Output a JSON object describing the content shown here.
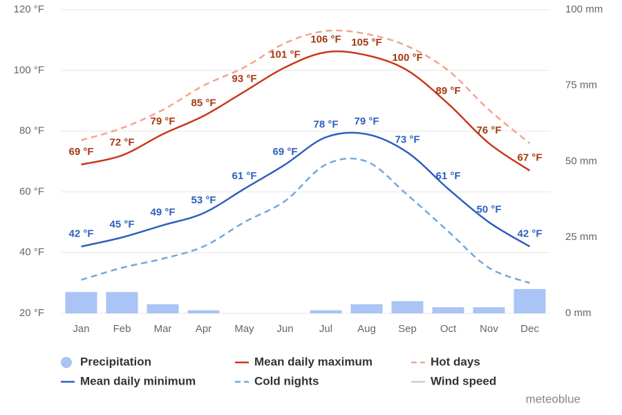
{
  "chart_data": {
    "type": "line",
    "categories": [
      "Jan",
      "Feb",
      "Mar",
      "Apr",
      "May",
      "Jun",
      "Jul",
      "Aug",
      "Sep",
      "Oct",
      "Nov",
      "Dec"
    ],
    "ylim": [
      20,
      120
    ],
    "yticks": [
      {
        "value": 20,
        "label": "20 °F"
      },
      {
        "value": 40,
        "label": "40 °F"
      },
      {
        "value": 60,
        "label": "60 °F"
      },
      {
        "value": 80,
        "label": "80 °F"
      },
      {
        "value": 100,
        "label": "100 °F"
      },
      {
        "value": 120,
        "label": "120 °F"
      }
    ],
    "y2lim": [
      0,
      100
    ],
    "y2ticks": [
      {
        "value": 0,
        "label": "0 mm"
      },
      {
        "value": 25,
        "label": "25 mm"
      },
      {
        "value": 50,
        "label": "50 mm"
      },
      {
        "value": 75,
        "label": "75 mm"
      },
      {
        "value": 100,
        "label": "100 mm"
      }
    ],
    "grid": true,
    "series": [
      {
        "name": "Precipitation",
        "type": "bar",
        "axis": "y2",
        "color": "#a9c4f5",
        "values": [
          7,
          7,
          3,
          1,
          0,
          0,
          1,
          3,
          4,
          2,
          2,
          8
        ]
      },
      {
        "name": "Mean daily maximum",
        "type": "line",
        "color": "#c9381a",
        "label_color": "#a33a14",
        "values": [
          69,
          72,
          79,
          85,
          93,
          101,
          106,
          105,
          100,
          89,
          76,
          67
        ],
        "value_labels": [
          "69 °F",
          "72 °F",
          "79 °F",
          "85 °F",
          "93 °F",
          "101 °F",
          "106 °F",
          "105 °F",
          "100 °F",
          "89 °F",
          "76 °F",
          "67 °F"
        ]
      },
      {
        "name": "Hot days",
        "type": "line",
        "dashed": true,
        "color": "#f2a48e",
        "values": [
          77,
          81,
          87,
          95,
          101,
          109,
          113,
          112,
          108,
          100,
          87,
          76
        ]
      },
      {
        "name": "Mean daily minimum",
        "type": "line",
        "color": "#2d5fbe",
        "label_color": "#2d5fbe",
        "values": [
          42,
          45,
          49,
          53,
          61,
          69,
          78,
          79,
          73,
          61,
          50,
          42
        ],
        "value_labels": [
          "42 °F",
          "45 °F",
          "49 °F",
          "53 °F",
          "61 °F",
          "69 °F",
          "78 °F",
          "79 °F",
          "73 °F",
          "61 °F",
          "50 °F",
          "42 °F"
        ]
      },
      {
        "name": "Cold nights",
        "type": "line",
        "dashed": true,
        "color": "#6fa8dc",
        "values": [
          31,
          35,
          38,
          42,
          50,
          57,
          69,
          70,
          59,
          47,
          35,
          30
        ]
      },
      {
        "name": "Wind speed",
        "type": "line",
        "color": "#cccccc",
        "visible": false
      }
    ],
    "watermark": "meteoblue"
  }
}
